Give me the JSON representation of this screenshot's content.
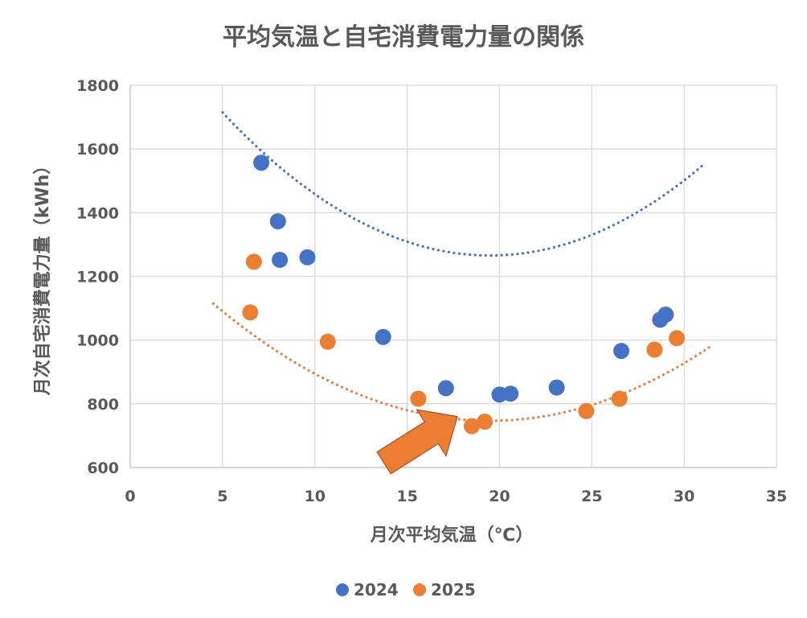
{
  "chart_data": {
    "type": "scatter",
    "title": "平均気温と自宅消費電力量の関係",
    "xlabel": "月次平均気温（℃）",
    "ylabel": "月次自宅消費電力量（kWh）",
    "xlim": [
      0,
      35
    ],
    "ylim": [
      600,
      1800
    ],
    "xticks": [
      "0",
      "5",
      "10",
      "15",
      "20",
      "25",
      "30",
      "35"
    ],
    "yticks": [
      "600",
      "800",
      "1000",
      "1200",
      "1400",
      "1600",
      "1800"
    ],
    "grid": true,
    "legend_position": "bottom",
    "trendline": "polynomial-order-2-dotted",
    "series": [
      {
        "name": "2024",
        "color": "#4472c4",
        "points": [
          [
            7.1,
            1557
          ],
          [
            8.0,
            1373
          ],
          [
            8.1,
            1252
          ],
          [
            9.6,
            1260
          ],
          [
            13.7,
            1010
          ],
          [
            17.1,
            849
          ],
          [
            20.0,
            829
          ],
          [
            20.6,
            832
          ],
          [
            23.1,
            851
          ],
          [
            26.6,
            966
          ],
          [
            28.7,
            1064
          ],
          [
            29.0,
            1080
          ]
        ],
        "trend": {
          "a": 2.137,
          "b": -83.33,
          "c": 2078,
          "x_range": [
            5.0,
            31.0
          ]
        }
      },
      {
        "name": "2025",
        "color": "#ed7d31",
        "points": [
          [
            6.5,
            1087
          ],
          [
            6.7,
            1246
          ],
          [
            10.7,
            995
          ],
          [
            15.6,
            816
          ],
          [
            18.5,
            730
          ],
          [
            19.2,
            744
          ],
          [
            24.7,
            777
          ],
          [
            26.5,
            816
          ],
          [
            28.4,
            970
          ],
          [
            29.6,
            1006
          ]
        ],
        "trend": {
          "a": 1.637,
          "b": -63.82,
          "c": 1369,
          "x_range": [
            4.5,
            31.5
          ]
        }
      }
    ],
    "annotation": {
      "type": "arrow",
      "color": "#ed7d31",
      "points_to": [
        18.5,
        735
      ]
    }
  }
}
